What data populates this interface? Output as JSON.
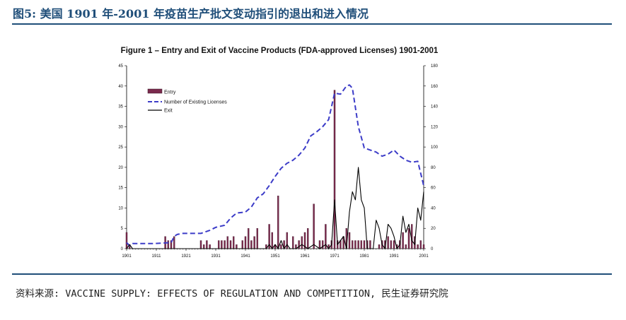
{
  "header": {
    "title": "图5: 美国 1901 年-2001 年疫苗生产批文变动指引的退出和进入情况"
  },
  "footer": {
    "source": "资料来源: VACCINE SUPPLY: EFFECTS OF REGULATION AND COMPETITION, 民生证券研究院"
  },
  "chart_data": {
    "type": "bar",
    "title": "Figure 1 – Entry and Exit of Vaccine Products (FDA-approved Licenses) 1901-2001",
    "xlim": [
      1901,
      2001
    ],
    "x_tick_labels": [
      "1901",
      "1911",
      "1921",
      "1931",
      "1941",
      "1951",
      "1961",
      "1971",
      "1981",
      "1991",
      "2001"
    ],
    "ylim_left": [
      0,
      45
    ],
    "y_left_tick_labels": [
      "0",
      "5",
      "10",
      "15",
      "20",
      "25",
      "30",
      "35",
      "40",
      "45"
    ],
    "ylim_right": [
      0,
      180
    ],
    "y_right_tick_labels": [
      "0",
      "20",
      "40",
      "60",
      "80",
      "100",
      "120",
      "140",
      "160",
      "180"
    ],
    "legend": {
      "position": "top-left"
    },
    "colors": {
      "entry": "#7a2a4d",
      "existing": "#3c3cc8",
      "exit": "#000000",
      "header": "#1f4e79"
    },
    "series": [
      {
        "name": "Entry",
        "kind": "bar",
        "axis": "left",
        "x": [
          1901,
          1902,
          1914,
          1915,
          1916,
          1917,
          1926,
          1927,
          1928,
          1929,
          1932,
          1933,
          1934,
          1935,
          1936,
          1937,
          1938,
          1940,
          1941,
          1942,
          1943,
          1944,
          1945,
          1948,
          1949,
          1950,
          1951,
          1952,
          1953,
          1954,
          1955,
          1957,
          1958,
          1959,
          1960,
          1961,
          1962,
          1964,
          1966,
          1967,
          1968,
          1969,
          1970,
          1971,
          1972,
          1973,
          1974,
          1975,
          1976,
          1977,
          1978,
          1979,
          1980,
          1981,
          1982,
          1983,
          1986,
          1987,
          1988,
          1989,
          1990,
          1991,
          1992,
          1993,
          1994,
          1995,
          1996,
          1997,
          1998,
          1999,
          2000,
          2001
        ],
        "values": [
          4,
          1,
          3,
          2,
          2,
          3,
          2,
          1,
          2,
          1,
          2,
          2,
          2,
          3,
          2,
          3,
          1,
          2,
          3,
          5,
          2,
          3,
          5,
          1,
          6,
          4,
          1,
          13,
          1,
          2,
          4,
          3,
          1,
          2,
          3,
          4,
          5,
          11,
          2,
          2,
          6,
          1,
          2,
          39,
          2,
          2,
          3,
          5,
          4,
          2,
          2,
          2,
          2,
          2,
          2,
          2,
          1,
          2,
          2,
          3,
          2,
          2,
          1,
          2,
          4,
          1,
          5,
          6,
          3,
          1,
          2,
          1
        ]
      },
      {
        "name": "Number of Existing Licenses",
        "kind": "line",
        "style": "dashed",
        "axis": "right",
        "x": [
          1901,
          1902,
          1903,
          1906,
          1910,
          1916,
          1917,
          1918,
          1920,
          1926,
          1929,
          1931,
          1934,
          1936,
          1938,
          1941,
          1943,
          1945,
          1947,
          1949,
          1951,
          1953,
          1955,
          1957,
          1959,
          1961,
          1963,
          1965,
          1967,
          1969,
          1971,
          1973,
          1975,
          1976,
          1977,
          1978,
          1979,
          1981,
          1983,
          1985,
          1987,
          1989,
          1991,
          1993,
          1995,
          1997,
          1999,
          2001
        ],
        "values": [
          6,
          3,
          5,
          5,
          5,
          6,
          12,
          14,
          15,
          15,
          18,
          21,
          23,
          30,
          35,
          36,
          41,
          50,
          54,
          62,
          71,
          79,
          84,
          87,
          92,
          99,
          111,
          115,
          120,
          127,
          153,
          152,
          160,
          161,
          158,
          139,
          120,
          99,
          97,
          95,
          91,
          93,
          97,
          91,
          87,
          85,
          86,
          62
        ]
      },
      {
        "name": "Exit",
        "kind": "line",
        "style": "solid",
        "axis": "left",
        "x": [
          1901,
          1902,
          1903,
          1948,
          1949,
          1950,
          1951,
          1952,
          1953,
          1954,
          1955,
          1956,
          1958,
          1960,
          1962,
          1964,
          1966,
          1968,
          1969,
          1970,
          1971,
          1972,
          1973,
          1974,
          1975,
          1976,
          1977,
          1978,
          1979,
          1980,
          1981,
          1982,
          1983,
          1984,
          1985,
          1986,
          1987,
          1988,
          1989,
          1990,
          1991,
          1992,
          1993,
          1994,
          1995,
          1996,
          1997,
          1998,
          1999,
          2000,
          2001
        ],
        "values": [
          0,
          1,
          0,
          0,
          1,
          0,
          1,
          0,
          2,
          0,
          1,
          0,
          0,
          1,
          0,
          1,
          0,
          1,
          0,
          1,
          12,
          1,
          2,
          3,
          0,
          9,
          14,
          12,
          20,
          12,
          10,
          0,
          0,
          0,
          7,
          5,
          1,
          0,
          6,
          5,
          3,
          0,
          1,
          8,
          4,
          6,
          2,
          1,
          10,
          7,
          14
        ]
      }
    ]
  }
}
